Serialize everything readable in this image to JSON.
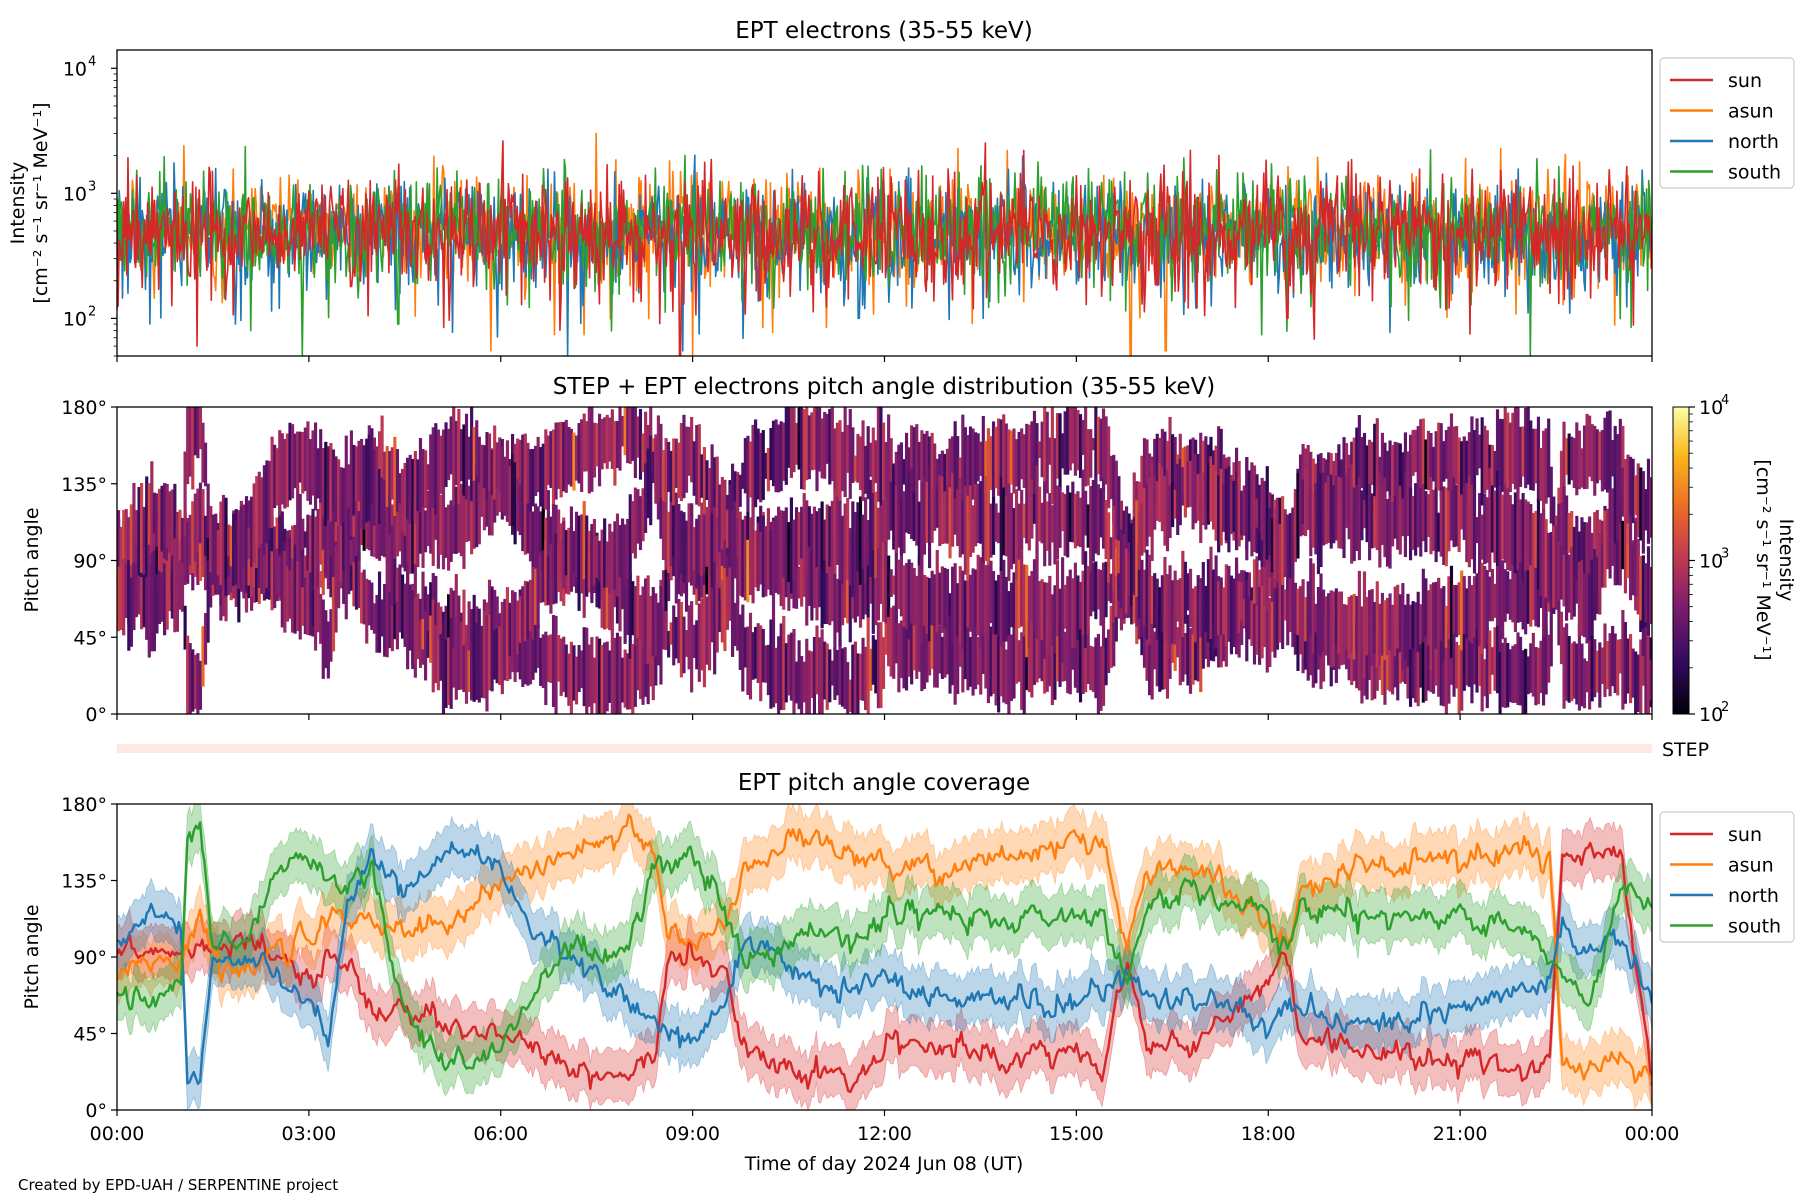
{
  "credit": "Created by EPD-UAH / SERPENTINE project",
  "chart_data": [
    {
      "id": "intensity",
      "type": "line",
      "title": "EPT electrons (35-55 keV)",
      "ylabel_line1": "Intensity",
      "ylabel_line2": "[cm⁻² s⁻¹ sr⁻¹ MeV⁻¹]",
      "yscale": "log",
      "ylim": [
        50,
        14000
      ],
      "yticks": [
        {
          "value": 100,
          "label": "10",
          "exp": "2"
        },
        {
          "value": 1000,
          "label": "10",
          "exp": "3"
        },
        {
          "value": 10000,
          "label": "10",
          "exp": "4"
        }
      ],
      "xlim": [
        "2024-06-08 00:00",
        "2024-06-09 00:00"
      ],
      "legend_placement": "outside-right-top",
      "series": [
        {
          "name": "sun",
          "color": "#d62728",
          "median": 480,
          "spread": 0.42,
          "dips": [
            [
              1.25,
              60
            ],
            [
              8.8,
              50
            ],
            [
              21.15,
              75
            ],
            [
              18.3,
              100
            ]
          ]
        },
        {
          "name": "asun",
          "color": "#ff7f0e",
          "median": 520,
          "spread": 0.38,
          "dips": [
            [
              5.85,
              55
            ],
            [
              9.0,
              50
            ],
            [
              16.4,
              55
            ],
            [
              15.85,
              50
            ]
          ]
        },
        {
          "name": "north",
          "color": "#1f77b4",
          "median": 470,
          "spread": 0.4,
          "dips": [
            [
              7.05,
              50
            ],
            [
              1.85,
              90
            ],
            [
              8.85,
              55
            ],
            [
              11.6,
              100
            ]
          ]
        },
        {
          "name": "south",
          "color": "#2ca02c",
          "median": 500,
          "spread": 0.38,
          "dips": [
            [
              2.9,
              50
            ],
            [
              22.1,
              50
            ],
            [
              4.4,
              90
            ]
          ]
        }
      ]
    },
    {
      "id": "pad",
      "type": "heatmap",
      "title": "STEP + EPT electrons pitch angle distribution (35-55 keV)",
      "ylabel": "Pitch angle",
      "ylim": [
        0,
        180
      ],
      "yticks": [
        "0°",
        "45°",
        "90°",
        "135°",
        "180°"
      ],
      "colorbar_label": "Intensity",
      "colorbar_units": "[cm⁻² s⁻¹ sr⁻¹ MeV⁻¹]",
      "colorscale": "log",
      "colorbar_range": [
        100,
        10000
      ],
      "colorbar_ticks": [
        {
          "value": 100,
          "label": "10",
          "exp": "2"
        },
        {
          "value": 1000,
          "label": "10",
          "exp": "3"
        },
        {
          "value": 10000,
          "label": "10",
          "exp": "4"
        }
      ],
      "colormap": "inferno",
      "colorbar_stops": [
        "#000004",
        "#320a5e",
        "#781c6d",
        "#bc3754",
        "#ed6925",
        "#fbb61a",
        "#fcffa4"
      ],
      "typical_intensity": 500,
      "step_row_label": "STEP",
      "step_row_color": "#fde9e1"
    },
    {
      "id": "coverage",
      "type": "line",
      "title": "EPT pitch angle coverage",
      "ylabel": "Pitch angle",
      "ylim": [
        0,
        180
      ],
      "yticks": [
        "0°",
        "45°",
        "90°",
        "135°",
        "180°"
      ],
      "xlabel": "Time of day 2024 Jun 08 (UT)",
      "xlim": [
        "2024-06-08 00:00",
        "2024-06-09 00:00"
      ],
      "xticks": [
        "00:00",
        "03:00",
        "06:00",
        "09:00",
        "12:00",
        "15:00",
        "18:00",
        "21:00",
        "00:00"
      ],
      "band_halfwidth_deg": 15,
      "legend_placement": "outside-right-top",
      "series": [
        {
          "name": "sun",
          "color": "#d62728",
          "keypoints": [
            [
              0.0,
              100
            ],
            [
              0.5,
              95
            ],
            [
              1.0,
              90
            ],
            [
              1.3,
              92
            ],
            [
              1.6,
              95
            ],
            [
              2.0,
              100
            ],
            [
              2.5,
              88
            ],
            [
              3.0,
              75
            ],
            [
              3.5,
              90
            ],
            [
              4.0,
              60
            ],
            [
              4.5,
              55
            ],
            [
              5.0,
              55
            ],
            [
              5.5,
              50
            ],
            [
              6.0,
              45
            ],
            [
              7.0,
              28
            ],
            [
              8.0,
              20
            ],
            [
              8.4,
              30
            ],
            [
              8.6,
              85
            ],
            [
              9.0,
              90
            ],
            [
              9.5,
              80
            ],
            [
              9.8,
              40
            ],
            [
              10.5,
              20
            ],
            [
              11.0,
              25
            ],
            [
              11.5,
              15
            ],
            [
              12.0,
              35
            ],
            [
              13.0,
              40
            ],
            [
              14.0,
              30
            ],
            [
              15.0,
              35
            ],
            [
              15.4,
              20
            ],
            [
              15.8,
              90
            ],
            [
              16.1,
              40
            ],
            [
              17.0,
              40
            ],
            [
              18.0,
              75
            ],
            [
              18.3,
              90
            ],
            [
              18.5,
              40
            ],
            [
              19.0,
              40
            ],
            [
              20.0,
              35
            ],
            [
              21.0,
              30
            ],
            [
              22.0,
              20
            ],
            [
              22.4,
              30
            ],
            [
              22.6,
              150
            ],
            [
              23.0,
              155
            ],
            [
              23.5,
              150
            ],
            [
              24.0,
              20
            ]
          ]
        },
        {
          "name": "asun",
          "color": "#ff7f0e",
          "keypoints": [
            [
              0.0,
              80
            ],
            [
              0.5,
              85
            ],
            [
              1.0,
              90
            ],
            [
              1.3,
              110
            ],
            [
              1.6,
              85
            ],
            [
              2.0,
              80
            ],
            [
              2.5,
              95
            ],
            [
              3.0,
              105
            ],
            [
              3.5,
              120
            ],
            [
              4.0,
              110
            ],
            [
              4.5,
              105
            ],
            [
              5.0,
              110
            ],
            [
              5.5,
              120
            ],
            [
              6.0,
              135
            ],
            [
              7.0,
              150
            ],
            [
              8.0,
              165
            ],
            [
              8.4,
              155
            ],
            [
              8.6,
              100
            ],
            [
              9.0,
              95
            ],
            [
              9.5,
              110
            ],
            [
              9.8,
              140
            ],
            [
              10.5,
              160
            ],
            [
              11.0,
              155
            ],
            [
              11.5,
              150
            ],
            [
              12.0,
              145
            ],
            [
              13.0,
              140
            ],
            [
              14.0,
              150
            ],
            [
              15.0,
              155
            ],
            [
              15.4,
              160
            ],
            [
              15.8,
              90
            ],
            [
              16.1,
              140
            ],
            [
              17.0,
              140
            ],
            [
              18.0,
              110
            ],
            [
              18.3,
              90
            ],
            [
              18.5,
              130
            ],
            [
              19.0,
              140
            ],
            [
              20.0,
              145
            ],
            [
              21.0,
              150
            ],
            [
              22.0,
              155
            ],
            [
              22.4,
              150
            ],
            [
              22.6,
              30
            ],
            [
              23.0,
              25
            ],
            [
              23.5,
              30
            ],
            [
              24.0,
              20
            ]
          ]
        },
        {
          "name": "north",
          "color": "#1f77b4",
          "keypoints": [
            [
              0.0,
              100
            ],
            [
              0.5,
              115
            ],
            [
              1.0,
              110
            ],
            [
              1.1,
              20
            ],
            [
              1.3,
              20
            ],
            [
              1.5,
              90
            ],
            [
              2.0,
              85
            ],
            [
              2.5,
              80
            ],
            [
              3.0,
              70
            ],
            [
              3.3,
              40
            ],
            [
              3.6,
              120
            ],
            [
              4.0,
              150
            ],
            [
              4.5,
              130
            ],
            [
              5.0,
              145
            ],
            [
              5.5,
              155
            ],
            [
              6.0,
              145
            ],
            [
              6.5,
              100
            ],
            [
              7.0,
              90
            ],
            [
              7.5,
              80
            ],
            [
              8.0,
              65
            ],
            [
              8.5,
              50
            ],
            [
              9.0,
              40
            ],
            [
              9.5,
              60
            ],
            [
              9.8,
              100
            ],
            [
              10.5,
              85
            ],
            [
              11.0,
              75
            ],
            [
              11.5,
              70
            ],
            [
              12.0,
              80
            ],
            [
              13.0,
              65
            ],
            [
              14.0,
              70
            ],
            [
              15.0,
              60
            ],
            [
              15.4,
              70
            ],
            [
              15.8,
              85
            ],
            [
              16.1,
              65
            ],
            [
              17.0,
              65
            ],
            [
              18.0,
              50
            ],
            [
              18.3,
              60
            ],
            [
              18.5,
              60
            ],
            [
              19.0,
              55
            ],
            [
              20.0,
              50
            ],
            [
              21.0,
              60
            ],
            [
              22.0,
              70
            ],
            [
              22.4,
              80
            ],
            [
              22.6,
              110
            ],
            [
              23.0,
              90
            ],
            [
              23.5,
              100
            ],
            [
              24.0,
              60
            ]
          ]
        },
        {
          "name": "south",
          "color": "#2ca02c",
          "keypoints": [
            [
              0.0,
              70
            ],
            [
              0.5,
              60
            ],
            [
              1.0,
              75
            ],
            [
              1.1,
              165
            ],
            [
              1.3,
              165
            ],
            [
              1.5,
              95
            ],
            [
              2.0,
              100
            ],
            [
              2.5,
              140
            ],
            [
              3.0,
              150
            ],
            [
              3.5,
              130
            ],
            [
              4.0,
              140
            ],
            [
              4.5,
              60
            ],
            [
              5.0,
              30
            ],
            [
              5.5,
              25
            ],
            [
              6.0,
              35
            ],
            [
              6.5,
              70
            ],
            [
              7.0,
              95
            ],
            [
              7.5,
              90
            ],
            [
              8.0,
              100
            ],
            [
              8.5,
              145
            ],
            [
              9.0,
              150
            ],
            [
              9.5,
              120
            ],
            [
              9.8,
              80
            ],
            [
              10.5,
              100
            ],
            [
              11.0,
              105
            ],
            [
              11.5,
              100
            ],
            [
              12.0,
              110
            ],
            [
              13.0,
              115
            ],
            [
              14.0,
              110
            ],
            [
              15.0,
              115
            ],
            [
              15.4,
              115
            ],
            [
              15.8,
              75
            ],
            [
              16.1,
              120
            ],
            [
              17.0,
              130
            ],
            [
              18.0,
              115
            ],
            [
              18.3,
              90
            ],
            [
              18.5,
              120
            ],
            [
              19.0,
              115
            ],
            [
              20.0,
              115
            ],
            [
              21.0,
              115
            ],
            [
              22.0,
              110
            ],
            [
              22.4,
              90
            ],
            [
              22.6,
              80
            ],
            [
              23.0,
              60
            ],
            [
              23.5,
              130
            ],
            [
              24.0,
              120
            ]
          ]
        }
      ]
    }
  ]
}
